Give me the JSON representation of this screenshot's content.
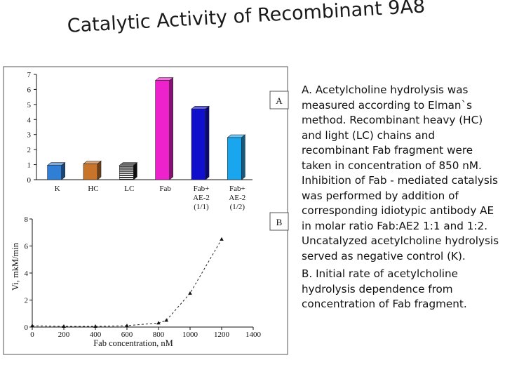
{
  "slide": {
    "title": "Catalytic Activity of Recombinant 9A8",
    "caption_a": "A. Acetylcholine hydrolysis was measured according to Elman`s method. Recombinant heavy (HC) and light (LC) chains and recombinant Fab fragment were taken in concentration of 850 nM. Inhibition of Fab - mediated catalysis was performed by addition of corresponding idiotypic antibody AE in molar ratio Fab:AE2 1:1 and 1:2. Uncatalyzed acetylcholine hydrolysis served as negative control (K).",
    "caption_b": "B. Initial rate of acetylcholine hydrolysis dependence from concentration of Fab fragment."
  },
  "chart_data": [
    {
      "panel": "A",
      "type": "bar",
      "categories": [
        {
          "line1": "K",
          "line2": "",
          "line3": ""
        },
        {
          "line1": "HC",
          "line2": "",
          "line3": ""
        },
        {
          "line1": "LC",
          "line2": "",
          "line3": ""
        },
        {
          "line1": "Fab",
          "line2": "",
          "line3": ""
        },
        {
          "line1": "Fab+",
          "line2": "AE-2",
          "line3": "(1/1)"
        },
        {
          "line1": "Fab+",
          "line2": "AE-2",
          "line3": "(1/2)"
        }
      ],
      "values": [
        0.95,
        1.05,
        0.95,
        6.6,
        4.7,
        2.8
      ],
      "colors": [
        "#2f7fd6",
        "#c8752b",
        "#1a1a1a",
        "#ee22cc",
        "#1010cc",
        "#1aa6ee"
      ],
      "ylim": [
        0,
        7
      ],
      "yticks": [
        0,
        1,
        2,
        3,
        4,
        5,
        6,
        7
      ],
      "xlabel": "",
      "ylabel": ""
    },
    {
      "panel": "B",
      "type": "line",
      "x": [
        0,
        200,
        400,
        600,
        800,
        850,
        1000,
        1200
      ],
      "y": [
        0.1,
        0.05,
        0.05,
        0.1,
        0.3,
        0.5,
        2.5,
        6.5
      ],
      "xlim": [
        0,
        1400
      ],
      "ylim": [
        0,
        8
      ],
      "xticks": [
        0,
        200,
        400,
        600,
        800,
        1000,
        1200,
        1400
      ],
      "yticks": [
        0,
        2,
        4,
        6,
        8
      ],
      "xlabel": "Fab concentration, nM",
      "ylabel": "Vi, mkM/min",
      "line_style": "dashed",
      "marker": "triangle"
    }
  ]
}
